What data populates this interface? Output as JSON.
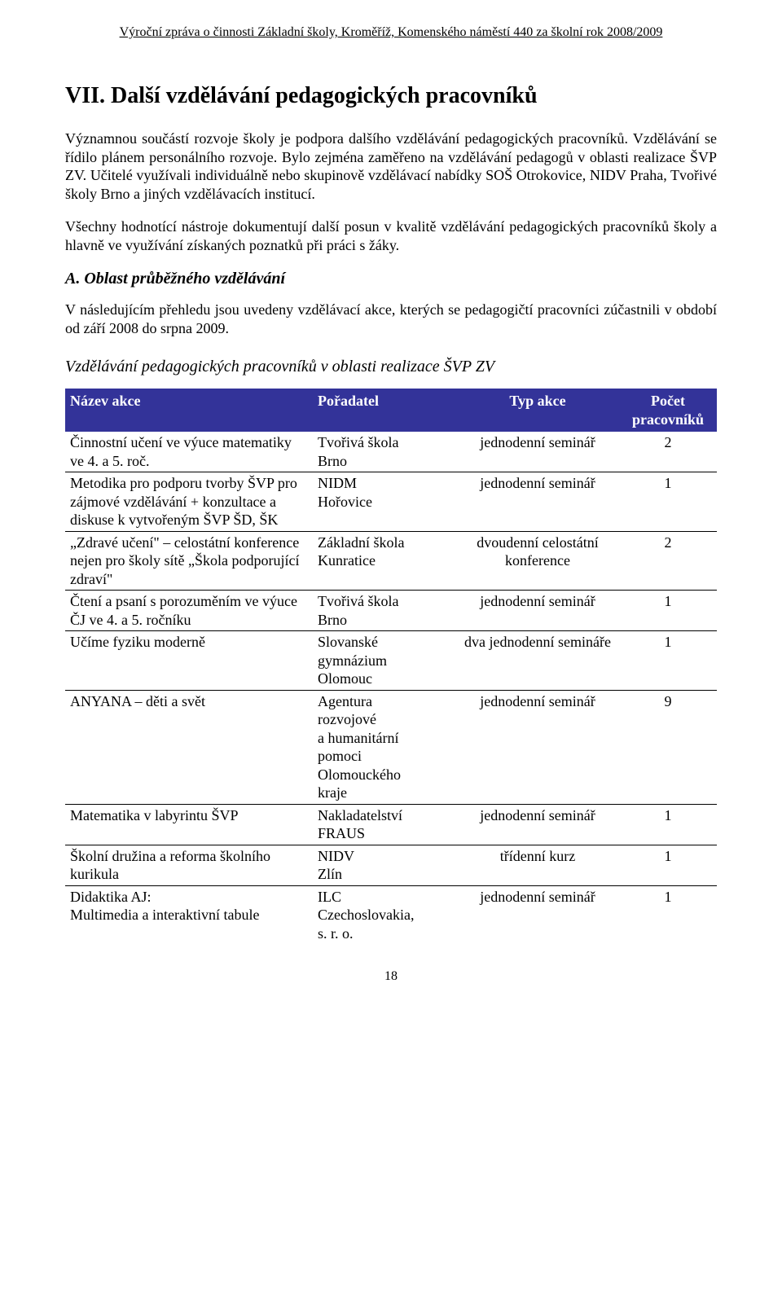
{
  "header": "Výroční zpráva o činnosti Základní školy, Kroměříž, Komenského náměstí 440 za školní rok 2008/2009",
  "heading": "VII. Další vzdělávání pedagogických pracovníků",
  "paragraphs": {
    "p1": "Významnou součástí rozvoje školy je podpora dalšího vzdělávání pedagogických pracovníků. Vzdělávání se řídilo plánem personálního rozvoje. Bylo zejména zaměřeno na vzdělávání pedagogů v oblasti realizace ŠVP ZV. Učitelé využívali individuálně nebo skupinově vzdělávací nabídky SOŠ Otrokovice, NIDV Praha, Tvořivé školy Brno a jiných vzdělávacích institucí.",
    "p2": "Všechny hodnotící nástroje dokumentují další posun v kvalitě vzdělávání pedagogických pracovníků školy a hlavně ve využívání získaných poznatků při práci s žáky.",
    "subheading_a": "A. Oblast průběžného vzdělávání",
    "p3": "V následujícím přehledu jsou uvedeny vzdělávací akce, kterých se pedagogičtí pracovníci zúčastnili v období od září 2008 do srpna 2009.",
    "table_title": "Vzdělávání pedagogických pracovníků v oblasti realizace ŠVP ZV"
  },
  "table": {
    "header_bg": "#333399",
    "header_fg": "#ffffff",
    "columns": [
      "Název akce",
      "Pořadatel",
      "Typ akce",
      "Počet\npracovníků"
    ],
    "rows": [
      {
        "name": "Činnostní učení ve výuce matematiky ve 4. a 5. roč.",
        "org": "Tvořivá škola\nBrno",
        "type": "jednodenní seminář",
        "count": "2"
      },
      {
        "name": "Metodika pro podporu tvorby ŠVP pro zájmové vzdělávání + konzultace a diskuse k vytvořeným ŠVP ŠD, ŠK",
        "org": "NIDM\nHořovice",
        "type": "jednodenní seminář",
        "count": "1"
      },
      {
        "name": "„Zdravé učení\" – celostátní konference nejen pro školy sítě „Škola podporující zdraví\"",
        "org": "Základní škola\nKunratice",
        "type": "dvoudenní celostátní konference",
        "count": "2"
      },
      {
        "name": "Čtení a psaní s porozuměním ve výuce ČJ ve 4. a 5. ročníku",
        "org": "Tvořivá škola\nBrno",
        "type": "jednodenní seminář",
        "count": "1"
      },
      {
        "name": "Učíme fyziku moderně",
        "org": "Slovanské\ngymnázium\nOlomouc",
        "type": "dva jednodenní semináře",
        "count": "1"
      },
      {
        "name": "ANYANA – děti a svět",
        "org": "Agentura\nrozvojové\na humanitární\npomoci\nOlomouckého\nkraje",
        "type": "jednodenní seminář",
        "count": "9"
      },
      {
        "name": "Matematika v labyrintu ŠVP",
        "org": "Nakladatelství\nFRAUS",
        "type": "jednodenní seminář",
        "count": "1"
      },
      {
        "name": "Školní družina a reforma školního kurikula",
        "org": "NIDV\nZlín",
        "type": "třídenní kurz",
        "count": "1"
      },
      {
        "name": "Didaktika AJ:\nMultimedia a interaktivní tabule",
        "org": "ILC\nCzechoslovakia,\ns. r. o.",
        "type": "jednodenní seminář",
        "count": "1"
      }
    ]
  },
  "page_number": "18"
}
